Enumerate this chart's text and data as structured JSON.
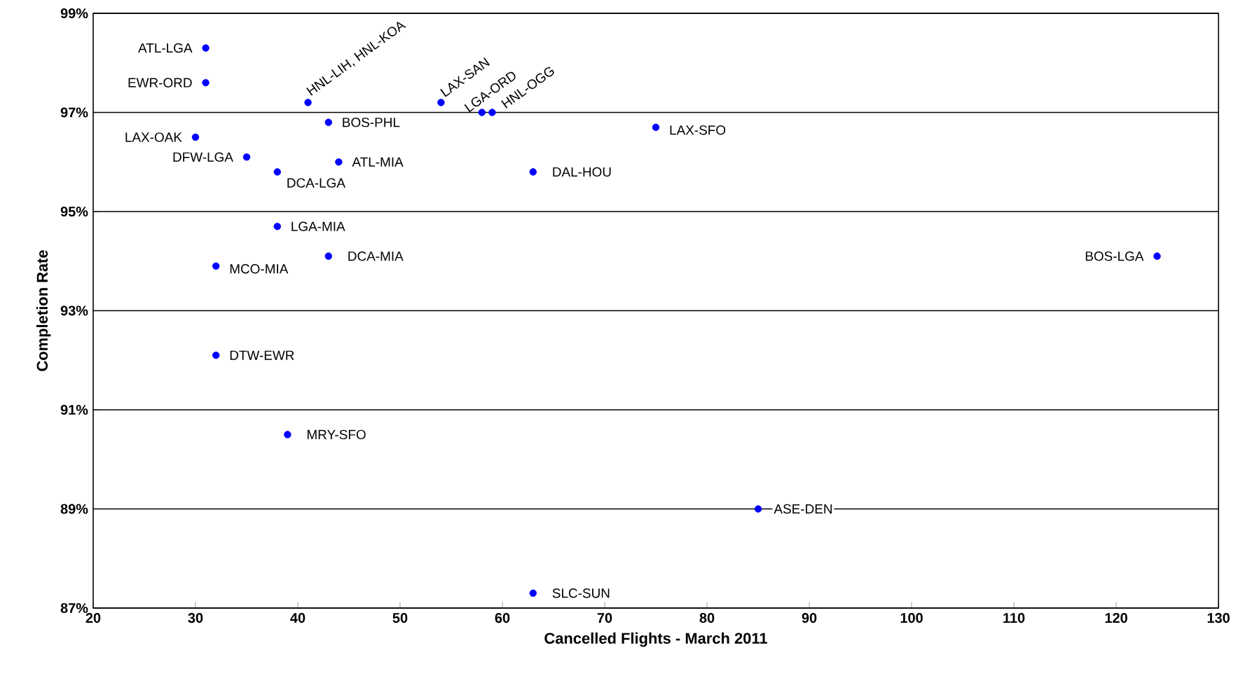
{
  "chart_data": {
    "type": "scatter",
    "xlabel": "Cancelled Flights - March 2011",
    "ylabel": "Completion Rate",
    "x": [
      31,
      31,
      41,
      54,
      58,
      59,
      43,
      75,
      30,
      35,
      44,
      38,
      63,
      38,
      43,
      124,
      32,
      32,
      39,
      85,
      63
    ],
    "values": [
      98.3,
      97.6,
      97.2,
      97.2,
      97.0,
      97.0,
      96.8,
      96.7,
      96.5,
      96.1,
      96.0,
      95.8,
      95.8,
      94.7,
      94.1,
      94.1,
      93.9,
      92.1,
      90.5,
      89.0,
      87.3
    ],
    "color": "#0000ff",
    "marker": "circle",
    "grid": "y",
    "xlim": [
      20,
      130
    ],
    "xticks": [
      20,
      30,
      40,
      50,
      60,
      70,
      80,
      90,
      100,
      110,
      120,
      130
    ],
    "ylim": [
      87,
      99
    ],
    "yticks": [
      {
        "value": 87,
        "label": "87%"
      },
      {
        "value": 89,
        "label": "89%"
      },
      {
        "value": 91,
        "label": "91%"
      },
      {
        "value": 93,
        "label": "93%"
      },
      {
        "value": 95,
        "label": "95%"
      },
      {
        "value": 97,
        "label": "97%"
      },
      {
        "value": 99,
        "label": "99%"
      }
    ],
    "annotations": [
      {
        "text": "ATL-LGA",
        "x": 31,
        "y": 98.3
      },
      {
        "text": "EWR-ORD",
        "x": 31,
        "y": 97.6
      },
      {
        "text": "HNL-LIH, HNL-KOA",
        "x": 41,
        "y": 97.2
      },
      {
        "text": "LAX-SAN",
        "x": 54,
        "y": 97.2
      },
      {
        "text": "LGA-ORD",
        "x": 58,
        "y": 97.0
      },
      {
        "text": "HNL-OGG",
        "x": 59,
        "y": 97.0
      },
      {
        "text": "BOS-PHL",
        "x": 43,
        "y": 96.8
      },
      {
        "text": "LAX-SFO",
        "x": 75,
        "y": 96.7
      },
      {
        "text": "LAX-OAK",
        "x": 30,
        "y": 96.5
      },
      {
        "text": "DFW-LGA",
        "x": 35,
        "y": 96.1
      },
      {
        "text": "ATL-MIA",
        "x": 44,
        "y": 96.0
      },
      {
        "text": "DCA-LGA",
        "x": 38,
        "y": 95.8
      },
      {
        "text": "DAL-HOU",
        "x": 63,
        "y": 95.8
      },
      {
        "text": "LGA-MIA",
        "x": 38,
        "y": 94.7
      },
      {
        "text": "DCA-MIA",
        "x": 43,
        "y": 94.1
      },
      {
        "text": "BOS-LGA",
        "x": 124,
        "y": 94.1
      },
      {
        "text": "MCO-MIA",
        "x": 32,
        "y": 93.9
      },
      {
        "text": "DTW-EWR",
        "x": 32,
        "y": 92.1
      },
      {
        "text": "MRY-SFO",
        "x": 39,
        "y": 90.5
      },
      {
        "text": "ASE-DEN",
        "x": 85,
        "y": 89.0
      },
      {
        "text": "SLC-SUN",
        "x": 63,
        "y": 87.3
      }
    ]
  }
}
